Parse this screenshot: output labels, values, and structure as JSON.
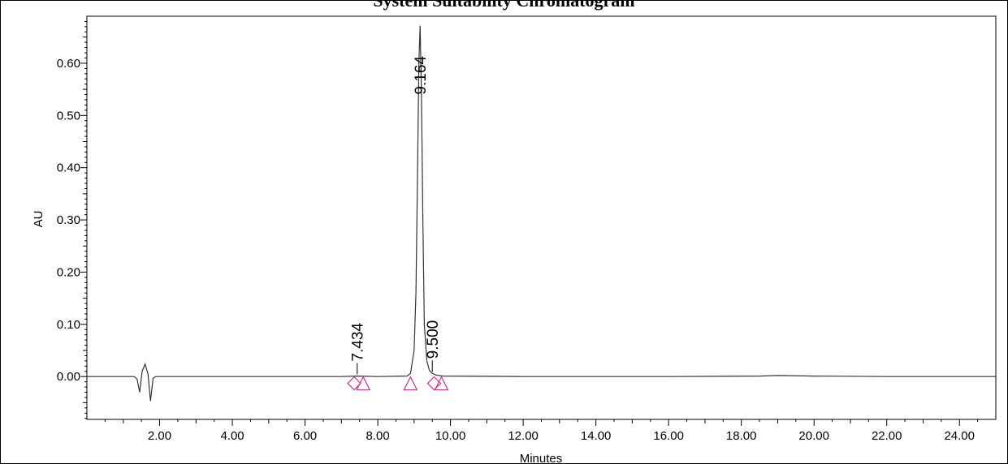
{
  "chart_data": {
    "type": "line",
    "title": "System Suitability Chromatogram",
    "xlabel": "Minutes",
    "ylabel": "AU",
    "xlim": [
      0.0,
      25.0
    ],
    "ylim": [
      -0.082,
      0.69
    ],
    "x_ticks": [
      "2.00",
      "4.00",
      "6.00",
      "8.00",
      "10.00",
      "12.00",
      "14.00",
      "16.00",
      "18.00",
      "20.00",
      "22.00",
      "24.00"
    ],
    "y_ticks": [
      "0.00",
      "0.10",
      "0.20",
      "0.30",
      "0.40",
      "0.50",
      "0.60"
    ],
    "grid": false,
    "line_color": "#333333",
    "marker_color": "#d8358e",
    "series": [
      {
        "values_description_x": [
          0.0,
          1.3,
          1.38,
          1.45,
          1.52,
          1.6,
          1.68,
          1.75,
          1.82,
          1.9,
          2.0,
          3.0,
          5.0,
          7.0,
          7.43,
          8.0,
          8.8,
          8.9,
          9.0,
          9.05,
          9.1,
          9.13,
          9.164,
          9.2,
          9.24,
          9.28,
          9.35,
          9.42,
          9.5,
          9.6,
          9.8,
          12.0,
          16.0,
          18.5,
          19.0,
          20.0,
          22.0,
          25.0
        ],
        "values_description_y": [
          0.0,
          0.0,
          -0.005,
          -0.03,
          0.01,
          0.024,
          0.005,
          -0.047,
          -0.003,
          0.0,
          0.0,
          0.0,
          0.0,
          0.0,
          0.001,
          0.0,
          0.001,
          0.006,
          0.05,
          0.16,
          0.42,
          0.6,
          0.672,
          0.55,
          0.3,
          0.1,
          0.03,
          0.012,
          0.006,
          0.003,
          0.001,
          0.0,
          0.0,
          0.001,
          0.002,
          0.001,
          0.0,
          0.0
        ]
      }
    ],
    "peaks": [
      {
        "label": "7.434",
        "x": 7.434,
        "y": 0.001
      },
      {
        "label": "9.164",
        "x": 9.164,
        "y": 0.672
      },
      {
        "label": "9.500",
        "x": 9.5,
        "y": 0.006
      }
    ],
    "markers": [
      {
        "shape": "diamond",
        "x": 7.35,
        "y": -0.013
      },
      {
        "shape": "triangle",
        "x": 7.6,
        "y": -0.013
      },
      {
        "shape": "triangle",
        "x": 8.9,
        "y": -0.013
      },
      {
        "shape": "diamond",
        "x": 9.55,
        "y": -0.013
      },
      {
        "shape": "triangle",
        "x": 9.75,
        "y": -0.013
      }
    ]
  }
}
